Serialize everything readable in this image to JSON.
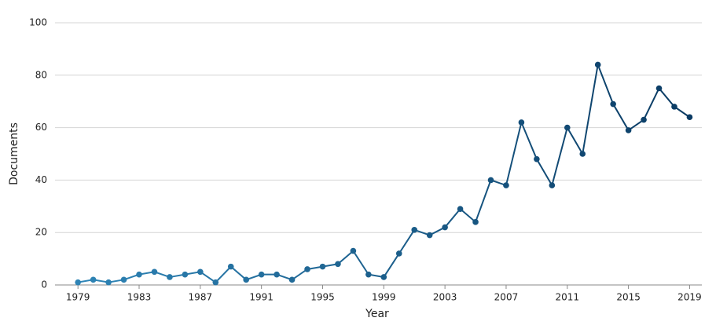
{
  "chart_data": {
    "type": "line",
    "x_label": "Year",
    "y_label": "Documents",
    "x": [
      1979,
      1980,
      1981,
      1982,
      1983,
      1984,
      1985,
      1986,
      1987,
      1988,
      1989,
      1990,
      1991,
      1992,
      1993,
      1994,
      1995,
      1996,
      1997,
      1998,
      1999,
      2000,
      2001,
      2002,
      2003,
      2004,
      2005,
      2006,
      2007,
      2008,
      2009,
      2010,
      2011,
      2012,
      2013,
      2014,
      2015,
      2016,
      2017,
      2018,
      2019
    ],
    "series": [
      {
        "colors": [
          "#2f86b8",
          "#0a3a62"
        ],
        "values": [
          1,
          2,
          1,
          2,
          4,
          5,
          3,
          4,
          5,
          1,
          7,
          2,
          4,
          4,
          2,
          6,
          7,
          8,
          13,
          4,
          3,
          12,
          21,
          19,
          22,
          29,
          24,
          40,
          38,
          62,
          48,
          38,
          60,
          50,
          84,
          69,
          59,
          63,
          75,
          68,
          64
        ]
      }
    ],
    "xlim": [
      1977.5,
      2019.8
    ],
    "xticks": [
      1979,
      1983,
      1987,
      1991,
      1995,
      1999,
      2003,
      2007,
      2011,
      2015,
      2019
    ],
    "ylim": [
      0,
      100
    ],
    "yticks": [
      0,
      20,
      40,
      60,
      80,
      100
    ],
    "grid": true
  }
}
